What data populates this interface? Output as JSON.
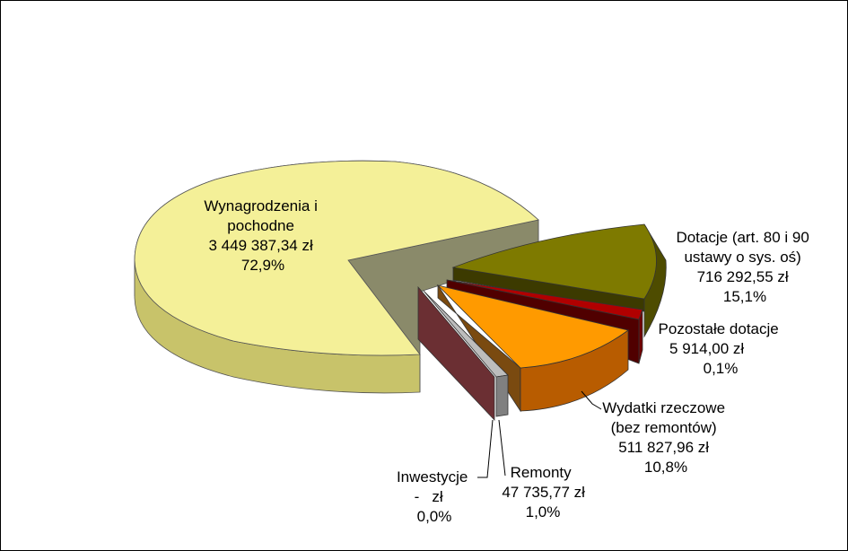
{
  "chart_data": {
    "type": "pie",
    "style": "3d-exploded",
    "legend": "none",
    "slices": [
      {
        "id": "wyn",
        "label_lines": [
          "Wynagrodzenia i",
          "pochodne"
        ],
        "value_text": "3 449 387,34 zł",
        "percent_text": "72,9%",
        "value": 3449387.34,
        "color": "#f4f098",
        "side_color": "#c8c36a",
        "cut_color": "#8a8a6a"
      },
      {
        "id": "dot",
        "label_lines": [
          "Dotacje (art. 80 i 90",
          "ustawy  o sys. oś)"
        ],
        "value_text": "716 292,55 zł",
        "percent_text": "15,1%",
        "value": 716292.55,
        "color": "#7e7a00",
        "side_color": "#4e4c00",
        "cut_color": "#3c3a00"
      },
      {
        "id": "poz",
        "label_lines": [
          "Pozostałe dotacje"
        ],
        "value_text": "5 914,00 zł",
        "percent_text": "0,1%",
        "value": 5914.0,
        "color": "#b00000",
        "side_color": "#700000",
        "cut_color": "#500000"
      },
      {
        "id": "wyd",
        "label_lines": [
          "Wydatki rzeczowe",
          "(bez remontów)"
        ],
        "value_text": "511 827,96 zł",
        "percent_text": "10,8%",
        "value": 511827.96,
        "color": "#ff9a00",
        "side_color": "#b85c00",
        "cut_color": "#7a4a10"
      },
      {
        "id": "rem",
        "label_lines": [
          "Remonty"
        ],
        "value_text": "47 735,77 zł",
        "percent_text": "1,0%",
        "value": 47735.77,
        "color": "#bdbdbd",
        "side_color": "#808080",
        "cut_color": "#5a5a5a"
      },
      {
        "id": "inw",
        "label_lines": [
          "Inwestycje"
        ],
        "value_text": "-   zł",
        "percent_text": "0,0%",
        "value": 0,
        "color": "#8a3a3a",
        "side_color": "#6b2f33",
        "cut_color": "#4a2226"
      }
    ]
  }
}
